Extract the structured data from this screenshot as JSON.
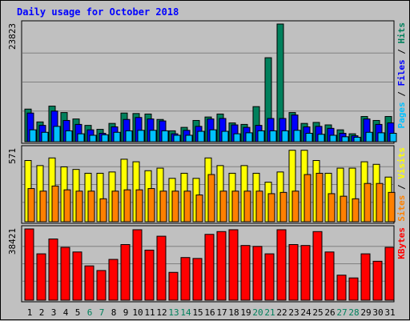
{
  "chart_data": {
    "type": "bar",
    "title": "Daily usage for October 2018",
    "categories": [
      "1",
      "2",
      "3",
      "4",
      "5",
      "6",
      "7",
      "8",
      "9",
      "10",
      "11",
      "12",
      "13",
      "14",
      "15",
      "16",
      "17",
      "18",
      "19",
      "20",
      "21",
      "22",
      "23",
      "24",
      "25",
      "26",
      "27",
      "28",
      "29",
      "30",
      "31"
    ],
    "weekend_days": [
      "6",
      "7",
      "13",
      "14",
      "20",
      "21",
      "27",
      "28"
    ],
    "panels": [
      {
        "name": "hits-files-pages",
        "max_label": "23823",
        "ylim": [
          0,
          23823
        ],
        "series": [
          {
            "name": "Hits",
            "color": "#00805c",
            "values": [
              6600,
              4000,
              7200,
              5900,
              4600,
              3300,
              2500,
              3700,
              5800,
              5700,
              5600,
              4500,
              2200,
              2900,
              4300,
              5000,
              5600,
              3800,
              3500,
              7100,
              17000,
              23823,
              5900,
              3700,
              3900,
              3400,
              2400,
              1600,
              5100,
              4300,
              5100
            ]
          },
          {
            "name": "Files",
            "color": "#0000ff",
            "values": [
              5800,
              3300,
              6200,
              4300,
              3500,
              2400,
              1700,
              3000,
              4500,
              4900,
              4600,
              4200,
              1600,
              2300,
              3100,
              4600,
              4700,
              3400,
              2900,
              3300,
              4700,
              4700,
              5400,
              3000,
              3100,
              2700,
              1700,
              1200,
              4600,
              3500,
              3800
            ]
          },
          {
            "name": "Pages",
            "color": "#00c0ff",
            "values": [
              2400,
              1900,
              3100,
              2200,
              1600,
              1300,
              1400,
              1900,
              2200,
              2300,
              2300,
              2200,
              1300,
              1300,
              2100,
              2400,
              2100,
              1600,
              1800,
              2200,
              2200,
              2200,
              2300,
              1700,
              1500,
              1300,
              1000,
              900,
              1900,
              1800,
              1700
            ]
          }
        ]
      },
      {
        "name": "visits-sites",
        "max_label": "571",
        "ylim": [
          0,
          571
        ],
        "series": [
          {
            "name": "Visits",
            "color": "#ffff00",
            "values": [
              480,
              440,
              500,
              430,
              410,
              380,
              380,
              390,
              490,
              470,
              400,
              420,
              340,
              380,
              340,
              500,
              440,
              380,
              440,
              380,
              310,
              390,
              560,
              560,
              480,
              380,
              420,
              420,
              470,
              450,
              350
            ]
          },
          {
            "name": "Sites",
            "color": "#ff8000",
            "values": [
              260,
              240,
              280,
              250,
              240,
              240,
              180,
              240,
              250,
              250,
              260,
              240,
              240,
              240,
              210,
              370,
              240,
              240,
              240,
              240,
              220,
              230,
              240,
              370,
              380,
              220,
              200,
              180,
              300,
              300,
              230
            ]
          }
        ]
      },
      {
        "name": "kbytes",
        "max_label": "38421",
        "ylim": [
          0,
          38421
        ],
        "series": [
          {
            "name": "KBytes",
            "color": "#ff0000",
            "values": [
              38421,
              25000,
              33000,
              28500,
              26000,
              18500,
              16000,
              22000,
              30000,
              38000,
              27000,
              34500,
              15000,
              23000,
              22500,
              35500,
              37000,
              38000,
              29500,
              29000,
              25000,
              38000,
              30000,
              29500,
              37000,
              26000,
              13500,
              12000,
              25000,
              21000,
              28500
            ]
          }
        ]
      }
    ],
    "legend_segments": [
      {
        "text": "Pages",
        "color": "#00c0ff"
      },
      {
        "text": " / ",
        "color": "#000000"
      },
      {
        "text": "Files",
        "color": "#0000ff"
      },
      {
        "text": " / ",
        "color": "#000000"
      },
      {
        "text": "Hits",
        "color": "#00805c"
      }
    ],
    "legend_segments_mid": [
      {
        "text": "Sites",
        "color": "#ff8000"
      },
      {
        "text": " / ",
        "color": "#000000"
      },
      {
        "text": "Visits",
        "color": "#ffff00"
      }
    ],
    "legend_segments_bottom": [
      {
        "text": "KBytes",
        "color": "#ff0000"
      }
    ],
    "colors": {
      "background": "#c0c0c0",
      "title": "#0000ff",
      "weekday_label": "#000000",
      "weekend_label": "#00805c",
      "gridline": "#808080"
    }
  }
}
